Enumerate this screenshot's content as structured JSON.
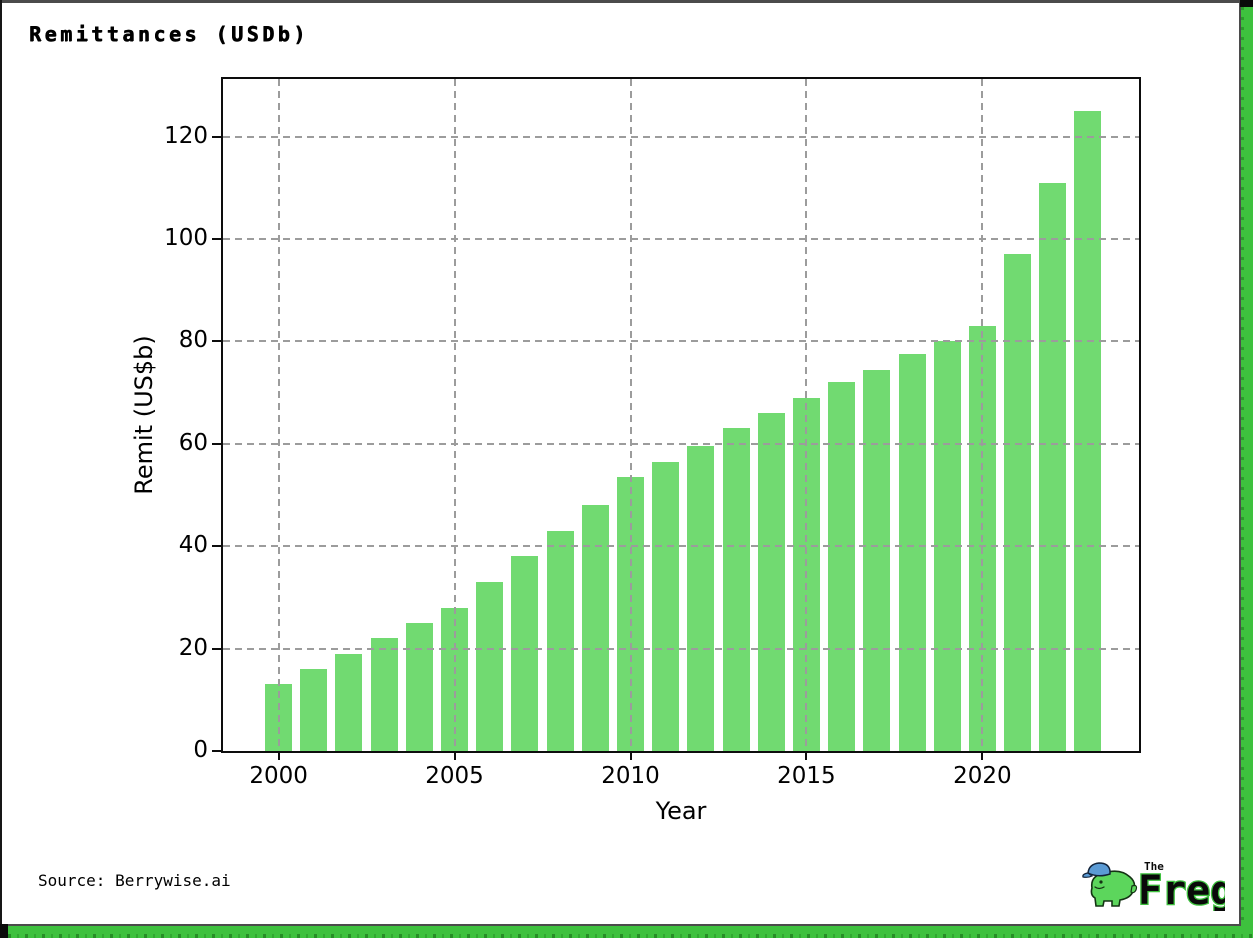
{
  "title": "Remittances (USDb)",
  "source": "Source: Berrywise.ai",
  "logo": {
    "word_small": "The",
    "word_big": "Freg"
  },
  "colors": {
    "bar": "#71da71",
    "brand_green": "#3ec13e",
    "grid": "#9c9c9c",
    "axis": "#0d0d0d",
    "logo_cap_blue": "#5b9bd5",
    "logo_body_green": "#5cd65c"
  },
  "chart_data": {
    "type": "bar",
    "title": "Remittances (USDb)",
    "xlabel": "Year",
    "ylabel": "Remit (US$b)",
    "x": [
      2000,
      2001,
      2002,
      2003,
      2004,
      2005,
      2006,
      2007,
      2008,
      2009,
      2010,
      2011,
      2012,
      2013,
      2014,
      2015,
      2016,
      2017,
      2018,
      2019,
      2020,
      2021,
      2022,
      2023
    ],
    "values": [
      13,
      16,
      19,
      22,
      25,
      28,
      33,
      38,
      43,
      48,
      53.5,
      56.5,
      59.5,
      63,
      66,
      69,
      72,
      74.5,
      77.5,
      80,
      83,
      97,
      111,
      125
    ],
    "x_ticks": [
      2000,
      2005,
      2010,
      2015,
      2020
    ],
    "y_ticks": [
      0,
      20,
      40,
      60,
      80,
      100,
      120
    ],
    "xlim": [
      1998.42,
      2024.45
    ],
    "ylim": [
      0,
      131.25
    ],
    "grid": true,
    "grid_style": "dashed",
    "grid_above_bars": true,
    "legend": false,
    "bar_color": "#71da71"
  }
}
